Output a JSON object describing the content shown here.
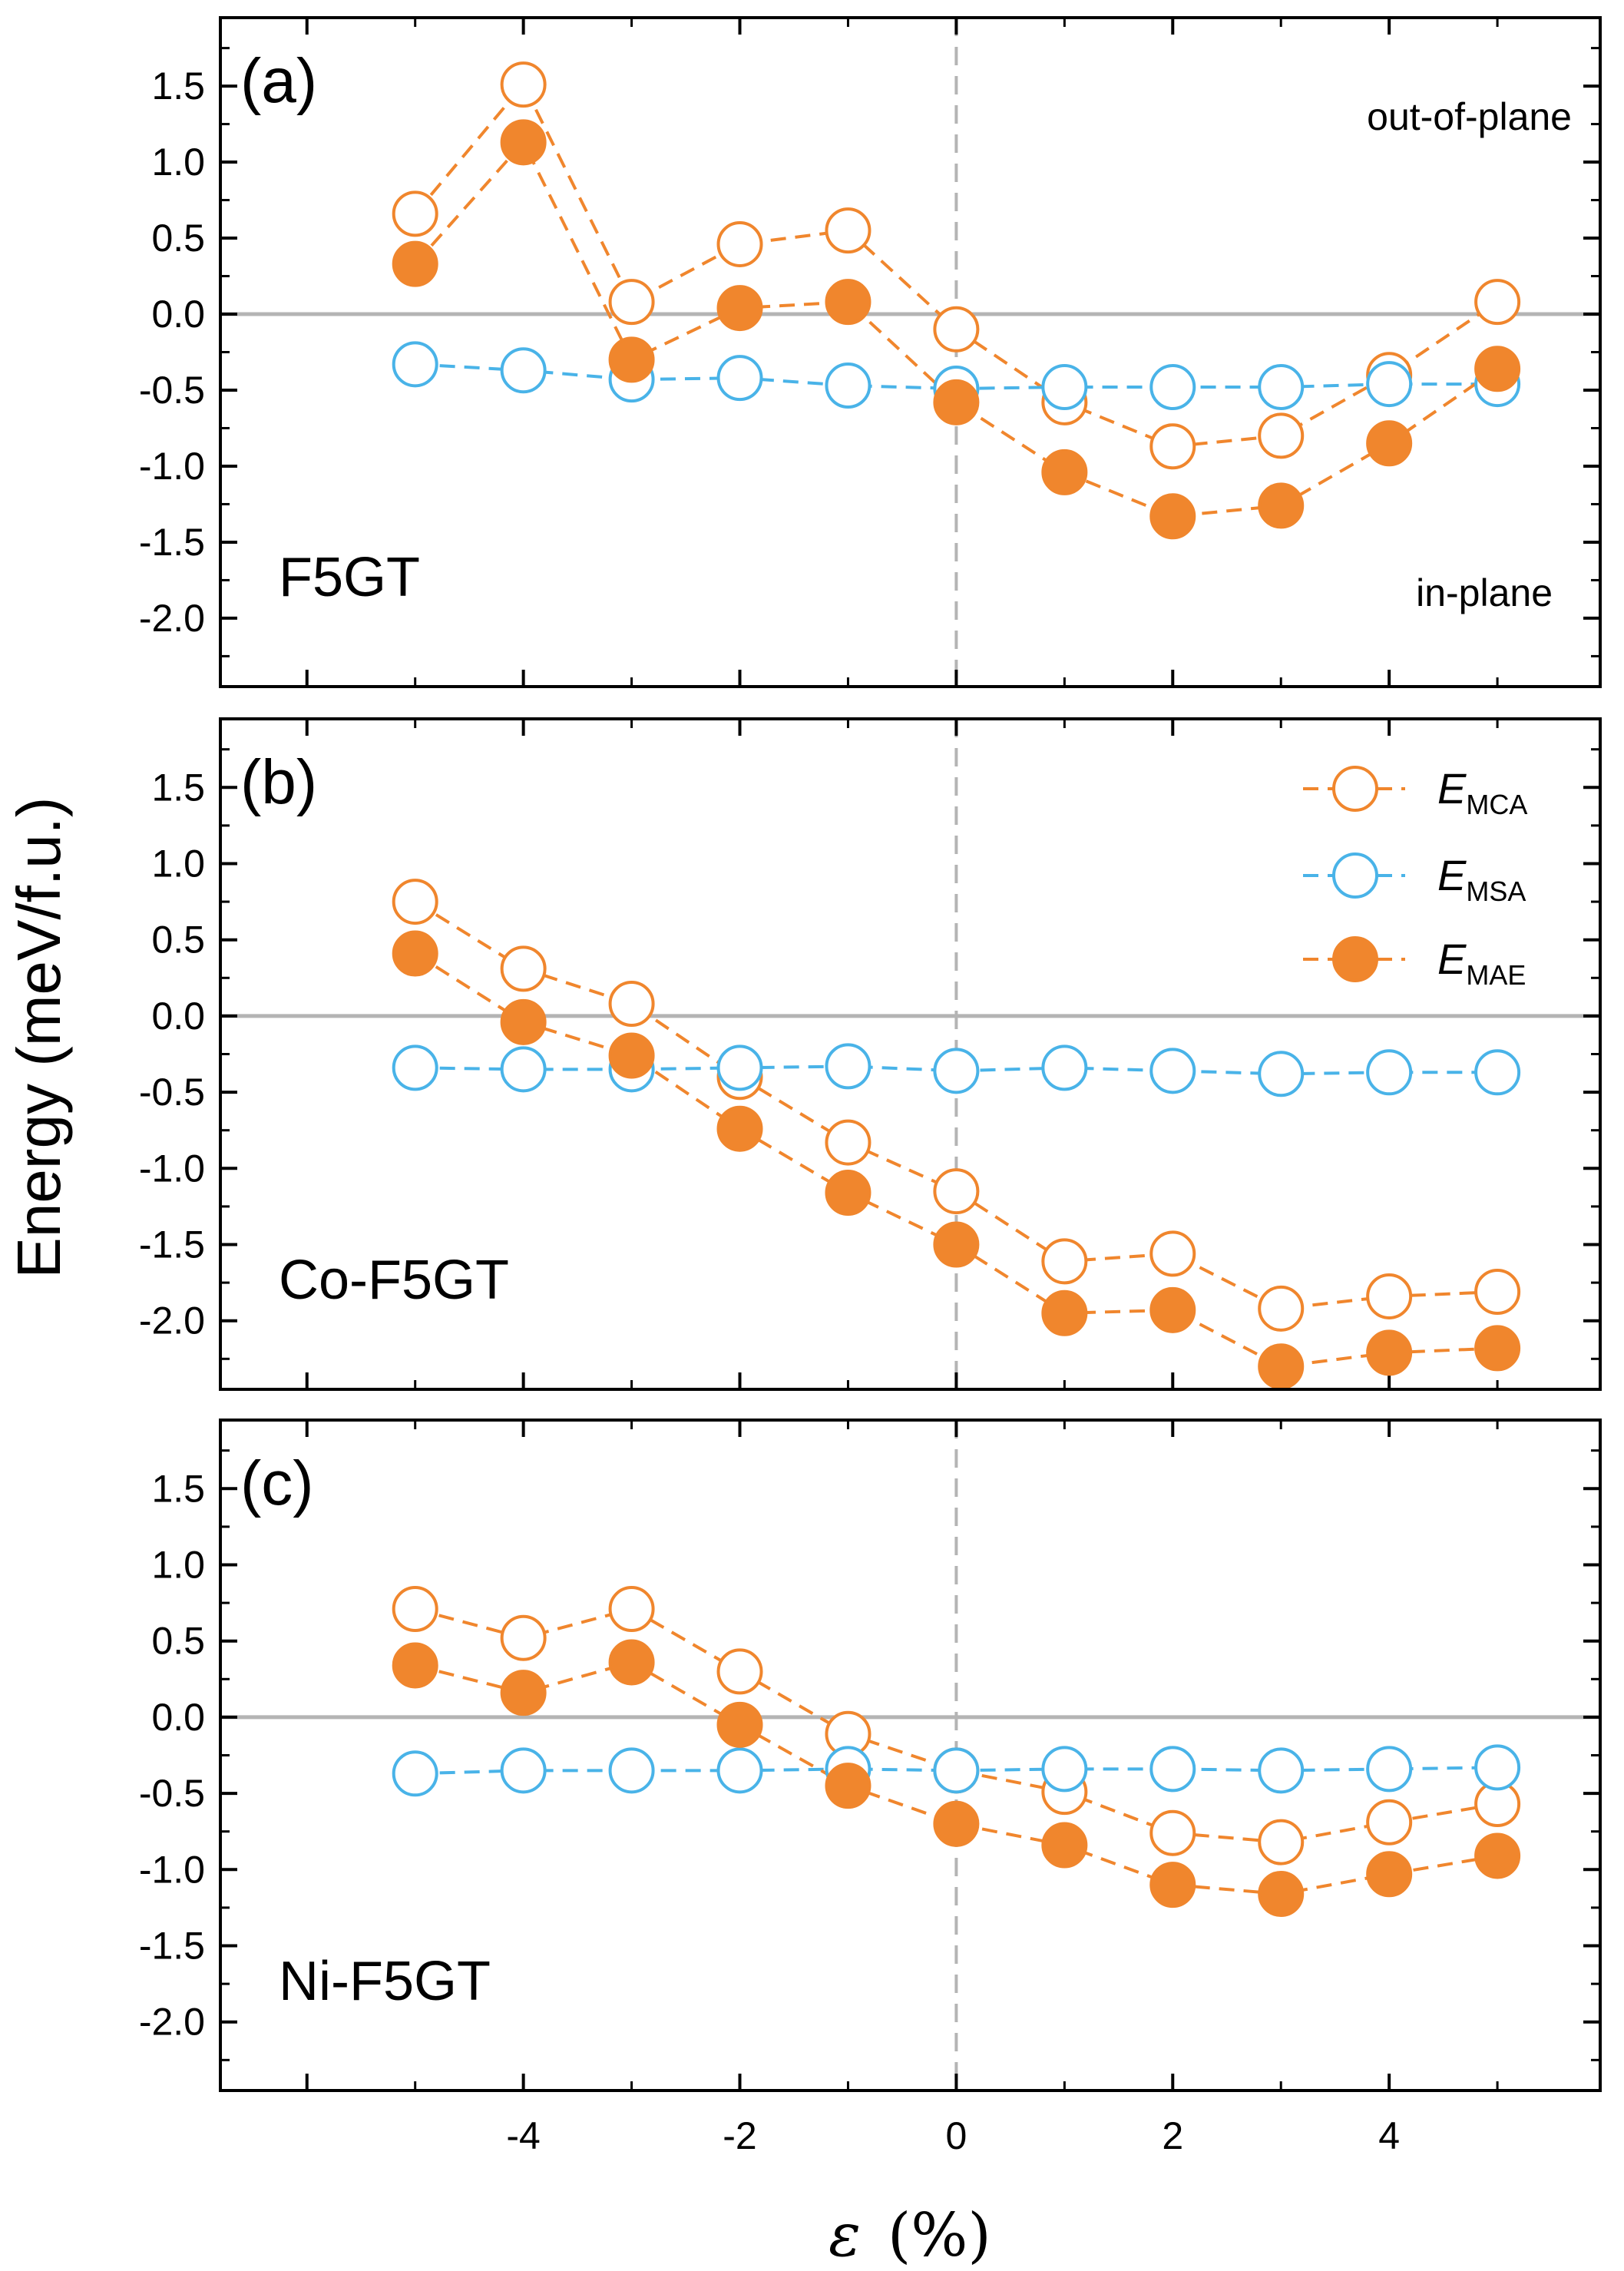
{
  "chart_data": {
    "type": "scatter",
    "x": [
      -5,
      -4,
      -3,
      -2,
      -1,
      0,
      1,
      2,
      3,
      4,
      5
    ],
    "xlabel": "ε (%)",
    "xlabel_symbol": "ε",
    "xlabel_unit": "(%)",
    "ylabel": "Energy (meV/f.u.)",
    "xlim": [
      -6.8,
      5.95
    ],
    "ylim": [
      -2.45,
      1.95
    ],
    "xticks": [
      -4,
      -2,
      0,
      2,
      4
    ],
    "yticks": [
      1.5,
      1.0,
      0.5,
      0.0,
      -0.5,
      -1.0,
      -1.5,
      -2.0
    ],
    "ytick_labels": [
      "1.5",
      "1.0",
      "0.5",
      "0.0",
      "-0.5",
      "-1.0",
      "-1.5",
      "-2.0"
    ],
    "xtick_labels": [
      "-4",
      "-2",
      "0",
      "2",
      "4"
    ],
    "legend": [
      {
        "base": "E",
        "sub": "MCA",
        "marker": "open",
        "color": "#f0862d"
      },
      {
        "base": "E",
        "sub": "MSA",
        "marker": "open",
        "color": "#49b3e8"
      },
      {
        "base": "E",
        "sub": "MAE",
        "marker": "filled",
        "color": "#f0862d"
      }
    ],
    "colors": {
      "orange": "#f0862d",
      "blue": "#49b3e8",
      "zero_line": "#b4b4b4",
      "vline": "#b4b4b4"
    },
    "panels": [
      {
        "label": "(a)",
        "material": "F5GT",
        "annotation_top": "out-of-plane",
        "annotation_bottom": "in-plane",
        "series": [
          {
            "name": "E_MCA",
            "values": [
              0.66,
              1.51,
              0.08,
              0.46,
              0.55,
              -0.1,
              -0.58,
              -0.87,
              -0.8,
              -0.4,
              0.08
            ]
          },
          {
            "name": "E_MSA",
            "values": [
              -0.33,
              -0.37,
              -0.43,
              -0.42,
              -0.47,
              -0.49,
              -0.48,
              -0.48,
              -0.48,
              -0.46,
              -0.46
            ]
          },
          {
            "name": "E_MAE",
            "values": [
              0.33,
              1.13,
              -0.3,
              0.04,
              0.08,
              -0.58,
              -1.04,
              -1.33,
              -1.26,
              -0.85,
              -0.36
            ]
          }
        ]
      },
      {
        "label": "(b)",
        "material": "Co-F5GT",
        "series": [
          {
            "name": "E_MCA",
            "values": [
              0.75,
              0.31,
              0.08,
              -0.4,
              -0.83,
              -1.15,
              -1.61,
              -1.56,
              -1.92,
              -1.84,
              -1.81
            ]
          },
          {
            "name": "E_MSA",
            "values": [
              -0.34,
              -0.35,
              -0.35,
              -0.34,
              -0.33,
              -0.36,
              -0.34,
              -0.36,
              -0.38,
              -0.37,
              -0.37
            ]
          },
          {
            "name": "E_MAE",
            "values": [
              0.41,
              -0.04,
              -0.26,
              -0.74,
              -1.16,
              -1.5,
              -1.95,
              -1.93,
              -2.3,
              -2.21,
              -2.18
            ]
          }
        ]
      },
      {
        "label": "(c)",
        "material": "Ni-F5GT",
        "series": [
          {
            "name": "E_MCA",
            "values": [
              0.71,
              0.52,
              0.71,
              0.3,
              -0.11,
              -0.35,
              -0.49,
              -0.76,
              -0.82,
              -0.69,
              -0.57
            ]
          },
          {
            "name": "E_MSA",
            "values": [
              -0.37,
              -0.35,
              -0.35,
              -0.35,
              -0.34,
              -0.35,
              -0.34,
              -0.34,
              -0.35,
              -0.34,
              -0.33
            ]
          },
          {
            "name": "E_MAE",
            "values": [
              0.34,
              0.16,
              0.36,
              -0.05,
              -0.45,
              -0.7,
              -0.84,
              -1.1,
              -1.16,
              -1.03,
              -0.91
            ]
          }
        ]
      }
    ]
  }
}
